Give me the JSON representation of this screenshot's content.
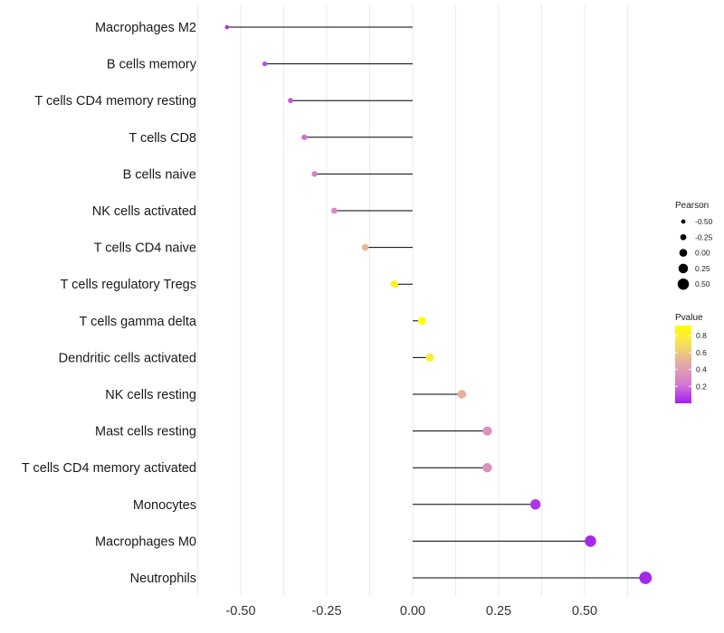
{
  "chart_data": {
    "type": "lollipop",
    "categories": [
      "Macrophages M2",
      "B cells memory",
      "T cells CD4 memory resting",
      "T cells CD8",
      "B cells naive",
      "NK cells activated",
      "T cells CD4 naive",
      "T cells regulatory  Tregs",
      "T cells gamma delta",
      "Dendritic cells activated",
      "NK cells resting",
      "Mast cells resting",
      "T cells CD4 memory activated",
      "Monocytes",
      "Macrophages M0",
      "Neutrophils"
    ],
    "values": [
      -0.54,
      -0.43,
      -0.355,
      -0.315,
      -0.285,
      -0.228,
      -0.138,
      -0.053,
      0.027,
      0.05,
      0.143,
      0.217,
      0.217,
      0.357,
      0.517,
      0.677
    ],
    "pvalues": [
      0.05,
      0.1,
      0.15,
      0.2,
      0.25,
      0.3,
      0.52,
      0.85,
      0.92,
      0.8,
      0.5,
      0.35,
      0.35,
      0.05,
      0.02,
      0.02
    ],
    "xlim": [
      -0.6,
      0.7
    ],
    "xticks": [
      "-0.50",
      "-0.25",
      "0.00",
      "0.25",
      "0.50"
    ],
    "xtick_values": [
      -0.5,
      -0.25,
      0,
      0.25,
      0.5
    ],
    "legend_size": {
      "title": "Pearson",
      "labels": [
        "-0.50",
        "-0.25",
        "0.00",
        "0.25",
        "0.50"
      ],
      "values": [
        -0.5,
        -0.25,
        0,
        0.25,
        0.5
      ]
    },
    "legend_color": {
      "title": "Pvalue",
      "labels": [
        "0.8",
        "0.6",
        "0.4",
        "0.2"
      ],
      "values": [
        0.8,
        0.6,
        0.4,
        0.2
      ],
      "range": [
        0.0,
        0.92
      ],
      "colors": [
        "#a020f0",
        "#d57ad2",
        "#e2a7a7",
        "#f4df60",
        "#ffff00"
      ]
    },
    "segment_color": "#000000",
    "grid": true
  }
}
